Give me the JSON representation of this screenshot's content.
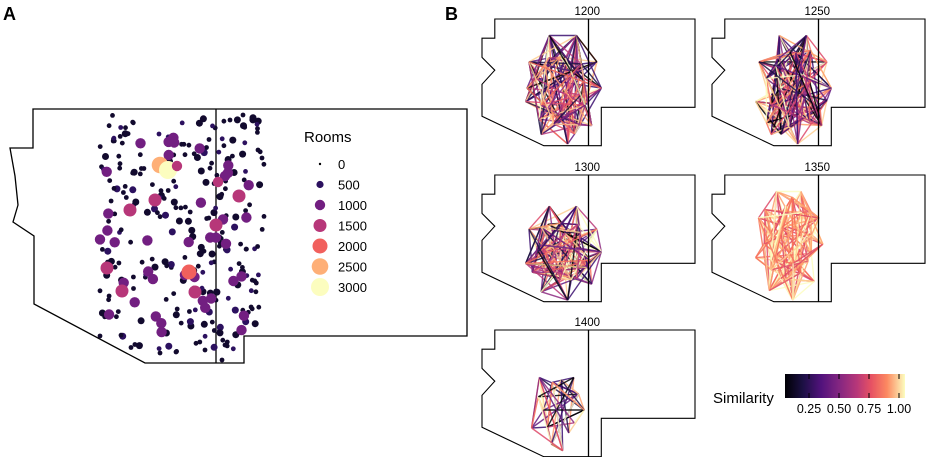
{
  "panel_a": {
    "label": "A",
    "legend": {
      "title": "Rooms",
      "items": [
        {
          "label": "0",
          "color": "#000004"
        },
        {
          "label": "500",
          "color": "#2c115f"
        },
        {
          "label": "1000",
          "color": "#721f81"
        },
        {
          "label": "1500",
          "color": "#b73779"
        },
        {
          "label": "2000",
          "color": "#f1605d"
        },
        {
          "label": "2500",
          "color": "#feaf77"
        },
        {
          "label": "3000",
          "color": "#fcfdbf"
        }
      ]
    }
  },
  "panel_b": {
    "label": "B",
    "maps": [
      {
        "title": "1200"
      },
      {
        "title": "1250"
      },
      {
        "title": "1300"
      },
      {
        "title": "1350"
      },
      {
        "title": "1400"
      }
    ],
    "colorbar": {
      "title": "Similarity",
      "ticks": [
        "0.25",
        "0.50",
        "0.75",
        "1.00"
      ],
      "tick_values": [
        0.25,
        0.5,
        0.75,
        1.0
      ],
      "range": [
        0.05,
        1.05
      ],
      "palette": "magma"
    }
  }
}
